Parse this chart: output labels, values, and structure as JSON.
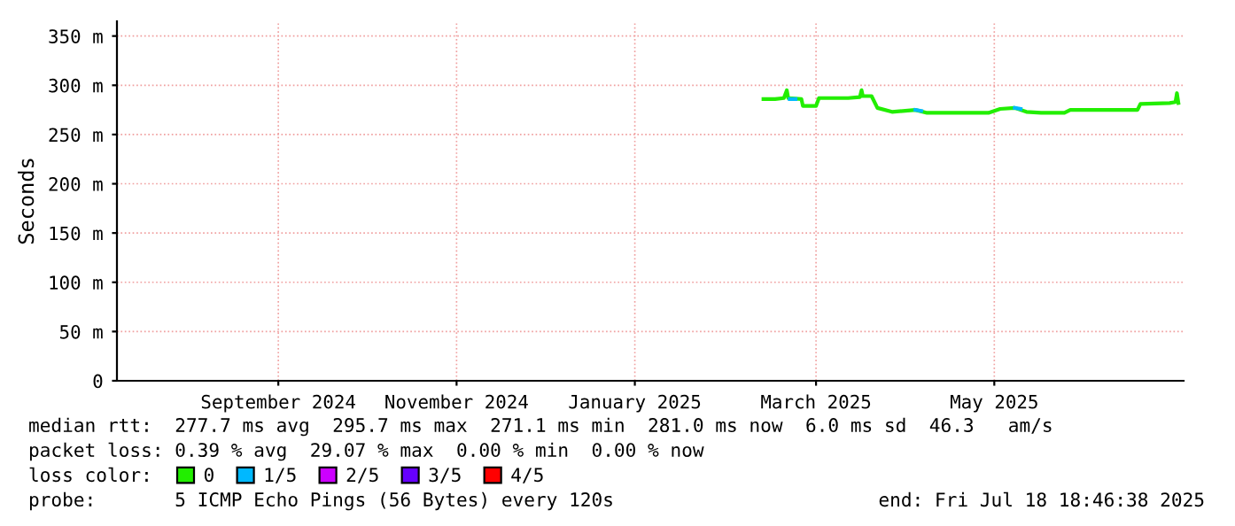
{
  "chart_data": {
    "type": "line",
    "ylabel": "Seconds",
    "xlim": [
      "2024-07-18T18:46",
      "2025-07-18T18:46"
    ],
    "xticks": [
      {
        "value": "2024-09-12",
        "label": "September 2024"
      },
      {
        "value": "2024-11-12",
        "label": "November 2024"
      },
      {
        "value": "2025-01-12",
        "label": "January 2025"
      },
      {
        "value": "2025-03-15",
        "label": "March 2025"
      },
      {
        "value": "2025-05-15",
        "label": "May 2025"
      }
    ],
    "ylim": [
      0,
      365
    ],
    "yticks": [
      0,
      {
        "value": 50,
        "label": "50 m"
      },
      {
        "value": 100,
        "label": "100 m"
      },
      {
        "value": 150,
        "label": "150 m"
      },
      {
        "value": 200,
        "label": "200 m"
      },
      {
        "value": 250,
        "label": "250 m"
      },
      {
        "value": 300,
        "label": "300 m"
      },
      {
        "value": 350,
        "label": "350 m"
      }
    ],
    "grid": true,
    "legend": "bottom",
    "legend_title": "loss color:",
    "series": [
      {
        "name": "0",
        "color": "#22ee00",
        "x": [
          "2025-02-25",
          "2025-03-01",
          "2025-03-04",
          "2025-03-05",
          "2025-03-05T12:00",
          "2025-03-10",
          "2025-03-10T12:00",
          "2025-03-15",
          "2025-03-16",
          "2025-03-26",
          "2025-03-30",
          "2025-03-30T14:00",
          "2025-03-31",
          "2025-04-03",
          "2025-04-05",
          "2025-04-10",
          "2025-04-18",
          "2025-04-22",
          "2025-05-13",
          "2025-05-17",
          "2025-05-22",
          "2025-05-26",
          "2025-05-31",
          "2025-06-08",
          "2025-06-10",
          "2025-07-03",
          "2025-07-04",
          "2025-07-14",
          "2025-07-16",
          "2025-07-16T12:00",
          "2025-07-17"
        ],
        "values": [
          286,
          286,
          287,
          295,
          287,
          286,
          279,
          279,
          287,
          287,
          288,
          295,
          289,
          289,
          277,
          273,
          275,
          272,
          272,
          276,
          277,
          273,
          272,
          272,
          275,
          275,
          281,
          282,
          283,
          292,
          282
        ]
      },
      {
        "name": "1/5",
        "color": "#00b8ff",
        "x": [
          "2025-03-06",
          "2025-03-08",
          "2025-03-09",
          "2025-04-18",
          "2025-04-20",
          "2025-04-21",
          "2025-05-22",
          "2025-05-24"
        ],
        "values": [
          286,
          286,
          null,
          275,
          274,
          null,
          277,
          276
        ]
      },
      {
        "name": "2/5",
        "color": "#cc00ff"
      },
      {
        "name": "3/5",
        "color": "#6600ff"
      },
      {
        "name": "4/5",
        "color": "#ff0000"
      }
    ],
    "annotations": [
      "median rtt:  277.7 ms avg  295.7 ms max  271.1 ms min  281.0 ms now  6.0 ms sd  46.3   am/s",
      "packet loss: 0.39 % avg  29.07 % max  0.00 % min  0.00 % now",
      "probe:       5 ICMP Echo Pings (56 Bytes) every 120s",
      "end: Fri Jul 18 18:46:38 2025"
    ]
  }
}
